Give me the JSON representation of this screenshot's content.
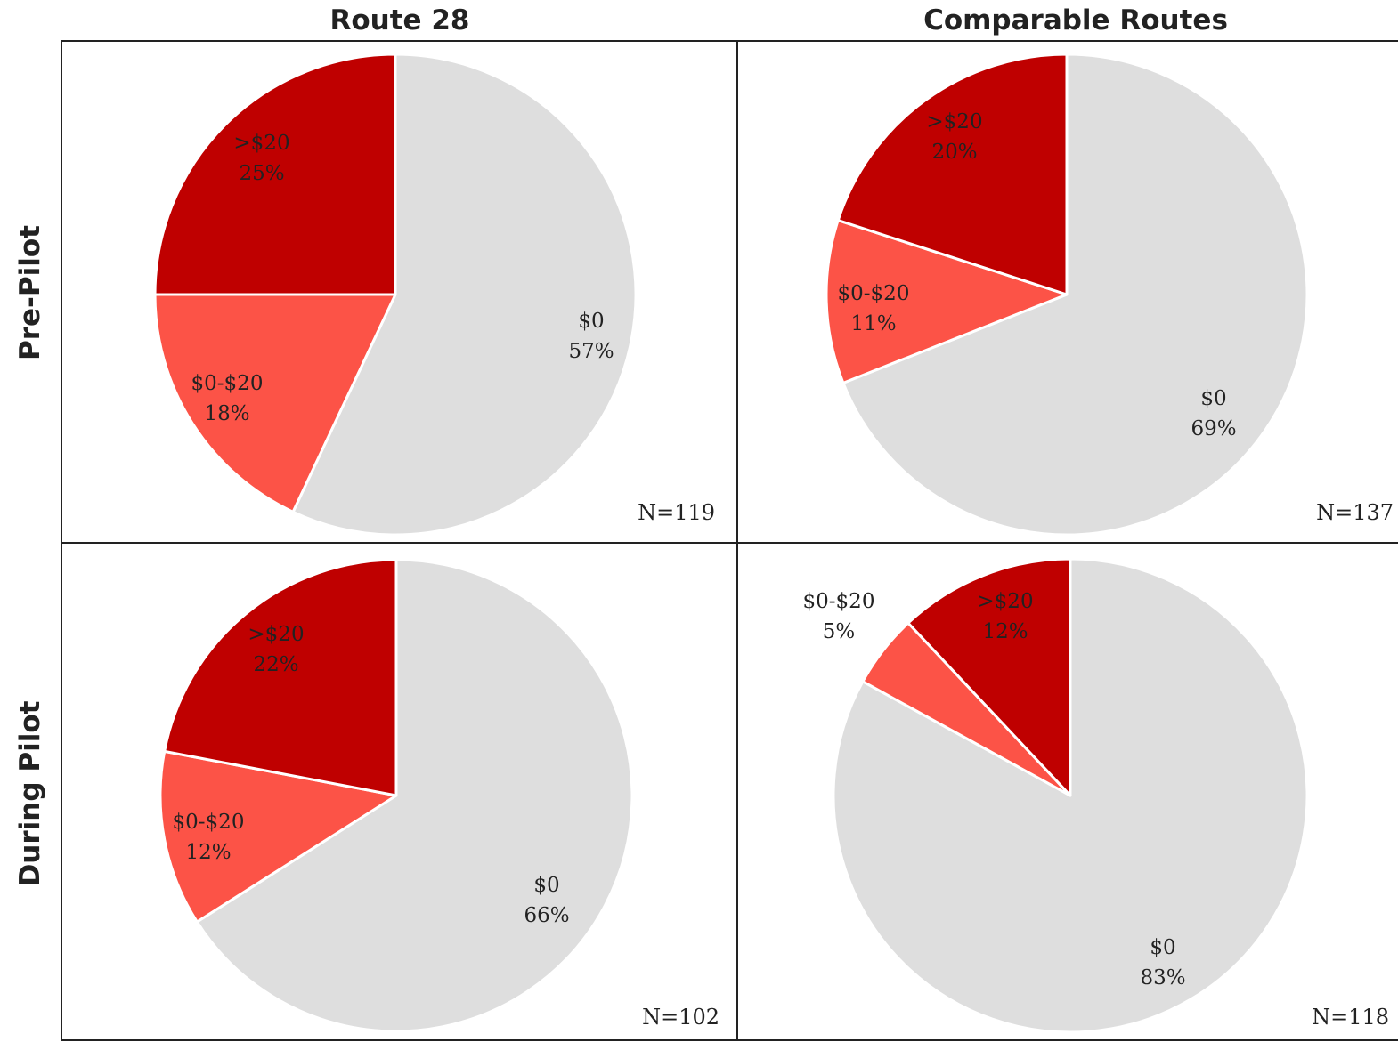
{
  "colors": {
    "$0": "#dedede",
    "$0-$20": "#fc5347",
    ">$20": "#bf0000",
    "slice_border": "#ffffff",
    "grid": "#222222"
  },
  "columns": [
    "Route 28",
    "Comparable Routes"
  ],
  "rows": [
    "Pre-Pilot",
    "During Pilot"
  ],
  "chart_data": [
    {
      "type": "pie",
      "column": "Route 28",
      "row": "Pre-Pilot",
      "n_label": "N=119",
      "slices": [
        {
          "category": "$0",
          "value": 57,
          "label": "$0",
          "pct_label": "57%"
        },
        {
          "category": "$0-$20",
          "value": 18,
          "label": "$0-$20",
          "pct_label": "18%"
        },
        {
          "category": ">$20",
          "value": 25,
          "label": ">$20",
          "pct_label": "25%"
        }
      ]
    },
    {
      "type": "pie",
      "column": "Comparable Routes",
      "row": "Pre-Pilot",
      "n_label": "N=137",
      "slices": [
        {
          "category": "$0",
          "value": 69,
          "label": "$0",
          "pct_label": "69%"
        },
        {
          "category": "$0-$20",
          "value": 11,
          "label": "$0-$20",
          "pct_label": "11%"
        },
        {
          "category": ">$20",
          "value": 20,
          "label": ">$20",
          "pct_label": "20%"
        }
      ]
    },
    {
      "type": "pie",
      "column": "Route 28",
      "row": "During Pilot",
      "n_label": "N=102",
      "slices": [
        {
          "category": "$0",
          "value": 66,
          "label": "$0",
          "pct_label": "66%"
        },
        {
          "category": "$0-$20",
          "value": 12,
          "label": "$0-$20",
          "pct_label": "12%"
        },
        {
          "category": ">$20",
          "value": 22,
          "label": ">$20",
          "pct_label": "22%"
        }
      ]
    },
    {
      "type": "pie",
      "column": "Comparable Routes",
      "row": "During Pilot",
      "n_label": "N=118",
      "slices": [
        {
          "category": "$0",
          "value": 83,
          "label": "$0",
          "pct_label": "83%"
        },
        {
          "category": "$0-$20",
          "value": 5,
          "label": "$0-$20",
          "pct_label": "5%"
        },
        {
          "category": ">$20",
          "value": 12,
          "label": ">$20",
          "pct_label": "12%"
        }
      ]
    }
  ]
}
